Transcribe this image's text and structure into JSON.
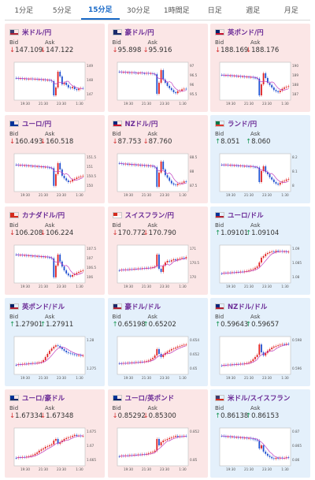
{
  "tabs": [
    {
      "label": "1分足",
      "active": false
    },
    {
      "label": "5分足",
      "active": false
    },
    {
      "label": "15分足",
      "active": true
    },
    {
      "label": "30分足",
      "active": false
    },
    {
      "label": "1時間足",
      "active": false
    },
    {
      "label": "日足",
      "active": false
    },
    {
      "label": "週足",
      "active": false
    },
    {
      "label": "月足",
      "active": false
    }
  ],
  "bid_label": "Bid",
  "ask_label": "Ask",
  "colors": {
    "down_bg": "#fbe6e6",
    "up_bg": "#e4f0fb",
    "candle_up": "#e02020",
    "candle_down": "#2050d0",
    "ma": "#c040c0",
    "tab_active": "#1a6ac8"
  },
  "pairs": [
    {
      "name": "米ドル/円",
      "direction": "down",
      "bid": "147.109",
      "ask": "147.122",
      "flag": [
        "#3c3b6e",
        "#b22234"
      ],
      "yticks": [
        "149",
        "148",
        "147"
      ],
      "xticks": [
        "19:30",
        "21:30",
        "23:30",
        "1:30"
      ],
      "chart_data": {
        "type": "candlestick",
        "trend": [
          0.4,
          0.42,
          0.41,
          0.43,
          0.42,
          0.44,
          0.43,
          0.42,
          0.44,
          0.43,
          0.45,
          0.44,
          0.46,
          0.45,
          0.47,
          0.46,
          0.48,
          0.5,
          0.95,
          0.7,
          0.2,
          0.35,
          0.6,
          0.55,
          0.62,
          0.7,
          0.72,
          0.68,
          0.75,
          0.78,
          0.74,
          0.72,
          0.73
        ]
      }
    },
    {
      "name": "豪ドル/円",
      "direction": "down",
      "bid": "95.898",
      "ask": "95.916",
      "flag": [
        "#1b2a6b",
        "#1b2a6b"
      ],
      "yticks": [
        "97",
        "96.5",
        "96",
        "95.5"
      ],
      "xticks": [
        "19:30",
        "21:30",
        "23:30",
        "1:30"
      ],
      "chart_data": {
        "type": "candlestick",
        "trend": [
          0.2,
          0.22,
          0.21,
          0.23,
          0.22,
          0.24,
          0.22,
          0.23,
          0.25,
          0.24,
          0.23,
          0.25,
          0.26,
          0.24,
          0.26,
          0.25,
          0.27,
          0.28,
          0.9,
          0.55,
          0.15,
          0.45,
          0.55,
          0.65,
          0.72,
          0.78,
          0.85,
          0.88,
          0.82,
          0.8,
          0.76,
          0.74,
          0.75
        ]
      }
    },
    {
      "name": "英ポンド/円",
      "direction": "down",
      "bid": "188.169",
      "ask": "188.176",
      "flag": [
        "#012169",
        "#c8102e"
      ],
      "yticks": [
        "190",
        "189",
        "188",
        "187"
      ],
      "xticks": [
        "19:30",
        "21:30",
        "23:30",
        "1:30"
      ],
      "chart_data": {
        "type": "candlestick",
        "trend": [
          0.3,
          0.32,
          0.31,
          0.33,
          0.32,
          0.34,
          0.33,
          0.35,
          0.34,
          0.36,
          0.35,
          0.37,
          0.36,
          0.38,
          0.37,
          0.39,
          0.4,
          0.42,
          0.95,
          0.6,
          0.25,
          0.4,
          0.55,
          0.62,
          0.7,
          0.78,
          0.82,
          0.85,
          0.8,
          0.74,
          0.7,
          0.68,
          0.66
        ]
      }
    },
    {
      "name": "ユーロ/円",
      "direction": "down",
      "bid": "160.493",
      "ask": "160.518",
      "flag": [
        "#003399",
        "#003399"
      ],
      "yticks": [
        "151.5",
        "151",
        "150.5",
        "150"
      ],
      "xticks": [
        "19:30",
        "21:30",
        "23:30",
        "1:30"
      ],
      "chart_data": {
        "type": "candlestick",
        "trend": [
          0.25,
          0.27,
          0.26,
          0.28,
          0.27,
          0.29,
          0.28,
          0.3,
          0.29,
          0.31,
          0.3,
          0.32,
          0.31,
          0.33,
          0.32,
          0.34,
          0.35,
          0.36,
          0.92,
          0.55,
          0.2,
          0.4,
          0.6,
          0.68,
          0.75,
          0.8,
          0.78,
          0.72,
          0.7,
          0.66,
          0.64,
          0.62,
          0.6
        ]
      }
    },
    {
      "name": "NZドル/円",
      "direction": "down",
      "bid": "87.753",
      "ask": "87.760",
      "flag": [
        "#00247d",
        "#cc142b"
      ],
      "yticks": [
        "88.5",
        "88",
        "87.5"
      ],
      "xticks": [
        "19:30",
        "21:30",
        "23:30",
        "1:30"
      ],
      "chart_data": {
        "type": "candlestick",
        "trend": [
          0.2,
          0.22,
          0.24,
          0.22,
          0.25,
          0.23,
          0.26,
          0.24,
          0.27,
          0.25,
          0.28,
          0.26,
          0.29,
          0.27,
          0.3,
          0.28,
          0.31,
          0.33,
          0.95,
          0.5,
          0.15,
          0.4,
          0.58,
          0.66,
          0.76,
          0.84,
          0.88,
          0.9,
          0.86,
          0.84,
          0.82,
          0.78,
          0.8
        ]
      }
    },
    {
      "name": "ランド/円",
      "direction": "up",
      "bid": "8.051",
      "ask": "8.060",
      "flag": [
        "#007749",
        "#de3831"
      ],
      "yticks": [
        "8.2",
        "8.1",
        "8"
      ],
      "xticks": [
        "19:30",
        "21:30",
        "23:30",
        "1:30"
      ],
      "chart_data": {
        "type": "candlestick",
        "trend": [
          0.25,
          0.26,
          0.25,
          0.27,
          0.26,
          0.28,
          0.27,
          0.28,
          0.29,
          0.28,
          0.3,
          0.29,
          0.3,
          0.31,
          0.3,
          0.32,
          0.33,
          0.34,
          0.8,
          0.45,
          0.3,
          0.48,
          0.55,
          0.65,
          0.72,
          0.8,
          0.85,
          0.88,
          0.82,
          0.78,
          0.76,
          0.72,
          0.7
        ]
      }
    },
    {
      "name": "カナダドル/円",
      "direction": "down",
      "bid": "106.208",
      "ask": "106.224",
      "flag": [
        "#d52b1e",
        "#d52b1e"
      ],
      "yticks": [
        "107.5",
        "107",
        "106.5",
        "106"
      ],
      "xticks": [
        "19:30",
        "21:30",
        "23:30",
        "1:30"
      ],
      "chart_data": {
        "type": "candlestick",
        "trend": [
          0.2,
          0.22,
          0.21,
          0.23,
          0.22,
          0.24,
          0.23,
          0.25,
          0.24,
          0.26,
          0.25,
          0.27,
          0.26,
          0.28,
          0.27,
          0.29,
          0.3,
          0.32,
          0.92,
          0.55,
          0.2,
          0.42,
          0.58,
          0.7,
          0.8,
          0.86,
          0.9,
          0.85,
          0.82,
          0.78,
          0.75,
          0.72,
          0.7
        ]
      }
    },
    {
      "name": "スイスフラン/円",
      "direction": "down",
      "bid": "170.772",
      "ask": "170.790",
      "flag": [
        "#d52b1e",
        "#ffffff"
      ],
      "yticks": [
        "171",
        "170.5",
        "170"
      ],
      "xticks": [
        "19:30",
        "21:30",
        "23:30",
        "1:30"
      ],
      "chart_data": {
        "type": "candlestick",
        "trend": [
          0.7,
          0.68,
          0.69,
          0.67,
          0.68,
          0.66,
          0.67,
          0.65,
          0.66,
          0.64,
          0.65,
          0.63,
          0.64,
          0.62,
          0.63,
          0.61,
          0.6,
          0.58,
          0.2,
          0.65,
          0.75,
          0.55,
          0.45,
          0.4,
          0.42,
          0.38,
          0.35,
          0.38,
          0.34,
          0.32,
          0.3,
          0.32,
          0.28
        ]
      }
    },
    {
      "name": "ユーロ/ドル",
      "direction": "up",
      "bid": "1.09101",
      "ask": "1.09104",
      "flag": [
        "#003399",
        "#b22234"
      ],
      "yticks": [
        "1.09",
        "1.085",
        "1.08"
      ],
      "xticks": [
        "19:30",
        "21:30",
        "23:30",
        "1:30"
      ],
      "chart_data": {
        "type": "candlestick",
        "trend": [
          0.8,
          0.78,
          0.79,
          0.77,
          0.78,
          0.76,
          0.77,
          0.75,
          0.76,
          0.74,
          0.75,
          0.73,
          0.72,
          0.7,
          0.68,
          0.66,
          0.62,
          0.58,
          0.45,
          0.3,
          0.25,
          0.18,
          0.15,
          0.12,
          0.1,
          0.12,
          0.08,
          0.1,
          0.09,
          0.11,
          0.1,
          0.12,
          0.11
        ]
      }
    },
    {
      "name": "英ポンド/ドル",
      "direction": "up",
      "bid": "1.27901",
      "ask": "1.27911",
      "flag": [
        "#012169",
        "#b22234"
      ],
      "yticks": [
        "1.28",
        "1.275"
      ],
      "xticks": [
        "19:30",
        "21:30",
        "23:30",
        "1:30"
      ],
      "chart_data": {
        "type": "candlestick",
        "trend": [
          0.8,
          0.78,
          0.79,
          0.77,
          0.76,
          0.77,
          0.75,
          0.76,
          0.74,
          0.75,
          0.73,
          0.72,
          0.7,
          0.65,
          0.55,
          0.45,
          0.35,
          0.28,
          0.22,
          0.18,
          0.2,
          0.25,
          0.3,
          0.35,
          0.4,
          0.42,
          0.44,
          0.46,
          0.48,
          0.5,
          0.49,
          0.51,
          0.5
        ]
      }
    },
    {
      "name": "豪ドル/ドル",
      "direction": "up",
      "bid": "0.65198",
      "ask": "0.65202",
      "flag": [
        "#1b2a6b",
        "#b22234"
      ],
      "yticks": [
        "0.654",
        "0.652",
        "0.65"
      ],
      "xticks": [
        "19:30",
        "21:30",
        "23:30",
        "1:30"
      ],
      "chart_data": {
        "type": "candlestick",
        "trend": [
          0.75,
          0.76,
          0.74,
          0.75,
          0.73,
          0.74,
          0.72,
          0.73,
          0.71,
          0.72,
          0.7,
          0.71,
          0.69,
          0.68,
          0.66,
          0.62,
          0.58,
          0.5,
          0.3,
          0.45,
          0.55,
          0.48,
          0.42,
          0.38,
          0.34,
          0.3,
          0.28,
          0.25,
          0.22,
          0.2,
          0.18,
          0.16,
          0.15
        ]
      }
    },
    {
      "name": "NZドル/ドル",
      "direction": "up",
      "bid": "0.59643",
      "ask": "0.59657",
      "flag": [
        "#00247d",
        "#b22234"
      ],
      "yticks": [
        "0.598",
        "0.596"
      ],
      "xticks": [
        "19:30",
        "21:30",
        "23:30",
        "1:30"
      ],
      "chart_data": {
        "type": "candlestick",
        "trend": [
          0.82,
          0.8,
          0.81,
          0.79,
          0.8,
          0.78,
          0.79,
          0.77,
          0.78,
          0.76,
          0.77,
          0.75,
          0.74,
          0.72,
          0.68,
          0.62,
          0.55,
          0.48,
          0.15,
          0.4,
          0.5,
          0.42,
          0.35,
          0.3,
          0.25,
          0.22,
          0.2,
          0.18,
          0.16,
          0.14,
          0.15,
          0.13,
          0.14
        ]
      }
    },
    {
      "name": "ユーロ/豪ドル",
      "direction": "down",
      "bid": "1.67334",
      "ask": "1.67348",
      "flag": [
        "#003399",
        "#1b2a6b"
      ],
      "yticks": [
        "1.675",
        "1.67",
        "1.665"
      ],
      "xticks": [
        "19:30",
        "21:30",
        "23:30",
        "1:30"
      ],
      "chart_data": {
        "type": "candlestick",
        "trend": [
          0.85,
          0.83,
          0.84,
          0.82,
          0.83,
          0.81,
          0.8,
          0.78,
          0.76,
          0.72,
          0.68,
          0.62,
          0.58,
          0.55,
          0.5,
          0.48,
          0.45,
          0.42,
          0.3,
          0.25,
          0.4,
          0.35,
          0.3,
          0.25,
          0.22,
          0.2,
          0.18,
          0.15,
          0.12,
          0.15,
          0.14,
          0.16,
          0.15
        ]
      }
    },
    {
      "name": "ユーロ/英ポンド",
      "direction": "down",
      "bid": "0.85292",
      "ask": "0.85300",
      "flag": [
        "#003399",
        "#012169"
      ],
      "yticks": [
        "0.852",
        "0.85"
      ],
      "xticks": [
        "19:30",
        "21:30",
        "23:30",
        "1:30"
      ],
      "chart_data": {
        "type": "candlestick",
        "trend": [
          0.8,
          0.78,
          0.79,
          0.77,
          0.78,
          0.76,
          0.77,
          0.75,
          0.76,
          0.74,
          0.75,
          0.73,
          0.74,
          0.72,
          0.7,
          0.68,
          0.66,
          0.62,
          0.25,
          0.45,
          0.35,
          0.3,
          0.28,
          0.25,
          0.22,
          0.2,
          0.18,
          0.15,
          0.18,
          0.16,
          0.17,
          0.15,
          0.16
        ]
      }
    },
    {
      "name": "米ドル/スイスフラン",
      "direction": "up",
      "bid": "0.86138",
      "ask": "0.86153",
      "flag": [
        "#3c3b6e",
        "#d52b1e"
      ],
      "yticks": [
        "0.87",
        "0.865",
        "0.86"
      ],
      "xticks": [
        "19:30",
        "21:30",
        "23:30",
        "1:30"
      ],
      "chart_data": {
        "type": "candlestick",
        "trend": [
          0.15,
          0.16,
          0.18,
          0.17,
          0.19,
          0.18,
          0.2,
          0.19,
          0.21,
          0.2,
          0.22,
          0.21,
          0.23,
          0.22,
          0.24,
          0.26,
          0.28,
          0.3,
          0.55,
          0.45,
          0.65,
          0.72,
          0.78,
          0.82,
          0.86,
          0.88,
          0.85,
          0.87,
          0.84,
          0.86,
          0.85,
          0.83,
          0.84
        ]
      }
    }
  ]
}
